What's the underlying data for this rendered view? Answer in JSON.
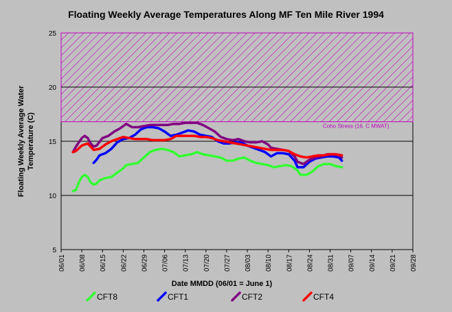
{
  "chart_data": {
    "type": "line",
    "title": "Floating Weekly Average Temperatures Along MF Ten Mile River 1994",
    "xlabel": "Date MMDD (06/01 = June 1)",
    "ylabel_line1": "Floating Weekly Average Water",
    "ylabel_line2": "Temperature (C)",
    "ylim": [
      5,
      25
    ],
    "yticks": [
      5,
      10,
      15,
      20,
      25
    ],
    "x_tick_labels": [
      "06/01",
      "06/08",
      "06/15",
      "06/22",
      "06/29",
      "07/06",
      "07/13",
      "07/20",
      "07/27",
      "08/03",
      "08/10",
      "08/17",
      "08/24",
      "08/31",
      "09/07",
      "09/14",
      "09/21",
      "09/28"
    ],
    "x_unit": "days after 06/01",
    "xlim": [
      0,
      119
    ],
    "grid": "horizontal",
    "stress_band": {
      "label": "Coho Stress (16.  C MWAT)",
      "from": 16.8,
      "to": 25,
      "color": "#c000c0"
    },
    "series": [
      {
        "name": "CFT8",
        "color": "#33ff33",
        "points": [
          [
            4,
            10.4
          ],
          [
            5,
            10.5
          ],
          [
            6,
            11.2
          ],
          [
            7,
            11.7
          ],
          [
            8,
            11.9
          ],
          [
            9,
            11.7
          ],
          [
            10,
            11.2
          ],
          [
            11,
            11.0
          ],
          [
            12,
            11.1
          ],
          [
            13,
            11.4
          ],
          [
            15,
            11.6
          ],
          [
            17,
            11.7
          ],
          [
            19,
            12.1
          ],
          [
            21,
            12.5
          ],
          [
            22,
            12.8
          ],
          [
            24,
            12.9
          ],
          [
            26,
            13.0
          ],
          [
            28,
            13.5
          ],
          [
            30,
            14.0
          ],
          [
            32,
            14.2
          ],
          [
            34,
            14.3
          ],
          [
            36,
            14.2
          ],
          [
            38,
            14.0
          ],
          [
            40,
            13.6
          ],
          [
            42,
            13.7
          ],
          [
            44,
            13.8
          ],
          [
            46,
            14.0
          ],
          [
            48,
            13.8
          ],
          [
            50,
            13.7
          ],
          [
            52,
            13.6
          ],
          [
            54,
            13.5
          ],
          [
            56,
            13.2
          ],
          [
            58,
            13.2
          ],
          [
            60,
            13.4
          ],
          [
            62,
            13.5
          ],
          [
            64,
            13.2
          ],
          [
            66,
            13.0
          ],
          [
            68,
            12.9
          ],
          [
            70,
            12.8
          ],
          [
            72,
            12.6
          ],
          [
            74,
            12.7
          ],
          [
            76,
            12.8
          ],
          [
            78,
            12.7
          ],
          [
            80,
            12.3
          ],
          [
            81,
            11.9
          ],
          [
            83,
            11.9
          ],
          [
            85,
            12.2
          ],
          [
            87,
            12.7
          ],
          [
            89,
            12.9
          ],
          [
            91,
            12.9
          ],
          [
            93,
            12.7
          ],
          [
            95,
            12.6
          ]
        ]
      },
      {
        "name": "CFT1",
        "color": "#0000ff",
        "points": [
          [
            11,
            13.0
          ],
          [
            12,
            13.3
          ],
          [
            13,
            13.7
          ],
          [
            15,
            13.9
          ],
          [
            17,
            14.3
          ],
          [
            19,
            14.9
          ],
          [
            21,
            15.2
          ],
          [
            23,
            15.3
          ],
          [
            25,
            15.6
          ],
          [
            27,
            16.1
          ],
          [
            29,
            16.3
          ],
          [
            31,
            16.3
          ],
          [
            33,
            16.2
          ],
          [
            35,
            15.9
          ],
          [
            37,
            15.5
          ],
          [
            39,
            15.6
          ],
          [
            41,
            15.8
          ],
          [
            43,
            16.0
          ],
          [
            45,
            15.9
          ],
          [
            47,
            15.6
          ],
          [
            49,
            15.5
          ],
          [
            51,
            15.4
          ],
          [
            53,
            15.0
          ],
          [
            55,
            14.8
          ],
          [
            57,
            14.8
          ],
          [
            59,
            14.9
          ],
          [
            61,
            14.9
          ],
          [
            63,
            14.6
          ],
          [
            65,
            14.4
          ],
          [
            67,
            14.2
          ],
          [
            69,
            14.0
          ],
          [
            71,
            13.6
          ],
          [
            73,
            13.9
          ],
          [
            75,
            13.9
          ],
          [
            77,
            13.8
          ],
          [
            79,
            13.2
          ],
          [
            80,
            12.6
          ],
          [
            82,
            12.6
          ],
          [
            84,
            13.1
          ],
          [
            86,
            13.4
          ],
          [
            88,
            13.5
          ],
          [
            90,
            13.6
          ],
          [
            92,
            13.6
          ],
          [
            94,
            13.5
          ],
          [
            95,
            13.2
          ]
        ]
      },
      {
        "name": "CFT2",
        "color": "#800080",
        "points": [
          [
            4,
            14.0
          ],
          [
            5,
            14.5
          ],
          [
            7,
            15.3
          ],
          [
            8,
            15.5
          ],
          [
            9,
            15.3
          ],
          [
            10,
            14.8
          ],
          [
            11,
            14.5
          ],
          [
            12,
            14.6
          ],
          [
            14,
            15.3
          ],
          [
            16,
            15.5
          ],
          [
            18,
            15.9
          ],
          [
            20,
            16.2
          ],
          [
            22,
            16.6
          ],
          [
            24,
            16.3
          ],
          [
            26,
            16.3
          ],
          [
            28,
            16.4
          ],
          [
            30,
            16.5
          ],
          [
            32,
            16.5
          ],
          [
            34,
            16.5
          ],
          [
            36,
            16.5
          ],
          [
            38,
            16.6
          ],
          [
            40,
            16.6
          ],
          [
            42,
            16.7
          ],
          [
            44,
            16.7
          ],
          [
            46,
            16.7
          ],
          [
            48,
            16.5
          ],
          [
            50,
            16.2
          ],
          [
            52,
            15.9
          ],
          [
            54,
            15.4
          ],
          [
            56,
            15.2
          ],
          [
            58,
            15.1
          ],
          [
            60,
            15.2
          ],
          [
            62,
            15.0
          ],
          [
            64,
            14.9
          ],
          [
            66,
            14.9
          ],
          [
            68,
            15.0
          ],
          [
            70,
            14.7
          ],
          [
            71,
            14.4
          ],
          [
            73,
            14.3
          ],
          [
            75,
            14.2
          ],
          [
            77,
            14.1
          ],
          [
            79,
            13.6
          ],
          [
            80,
            13.1
          ],
          [
            82,
            12.9
          ],
          [
            84,
            13.3
          ],
          [
            86,
            13.5
          ],
          [
            88,
            13.6
          ],
          [
            90,
            13.8
          ],
          [
            92,
            13.8
          ],
          [
            94,
            13.7
          ],
          [
            95,
            13.5
          ]
        ]
      },
      {
        "name": "CFT4",
        "color": "#ff0000",
        "points": [
          [
            4,
            14.0
          ],
          [
            5,
            14.1
          ],
          [
            7,
            14.6
          ],
          [
            9,
            14.8
          ],
          [
            11,
            14.2
          ],
          [
            13,
            14.3
          ],
          [
            15,
            14.7
          ],
          [
            17,
            15.0
          ],
          [
            19,
            15.2
          ],
          [
            21,
            15.4
          ],
          [
            23,
            15.3
          ],
          [
            25,
            15.2
          ],
          [
            27,
            15.2
          ],
          [
            29,
            15.2
          ],
          [
            31,
            15.1
          ],
          [
            33,
            15.1
          ],
          [
            35,
            15.1
          ],
          [
            37,
            15.2
          ],
          [
            39,
            15.5
          ],
          [
            41,
            15.5
          ],
          [
            43,
            15.5
          ],
          [
            45,
            15.5
          ],
          [
            47,
            15.4
          ],
          [
            49,
            15.4
          ],
          [
            51,
            15.3
          ],
          [
            53,
            15.1
          ],
          [
            55,
            15.0
          ],
          [
            57,
            14.9
          ],
          [
            59,
            14.8
          ],
          [
            61,
            14.7
          ],
          [
            63,
            14.6
          ],
          [
            65,
            14.5
          ],
          [
            67,
            14.4
          ],
          [
            69,
            14.3
          ],
          [
            71,
            14.2
          ],
          [
            73,
            14.2
          ],
          [
            75,
            14.2
          ],
          [
            77,
            14.1
          ],
          [
            79,
            13.8
          ],
          [
            81,
            13.6
          ],
          [
            83,
            13.5
          ],
          [
            85,
            13.6
          ],
          [
            87,
            13.7
          ],
          [
            89,
            13.7
          ],
          [
            91,
            13.8
          ],
          [
            93,
            13.8
          ],
          [
            95,
            13.7
          ]
        ]
      }
    ]
  }
}
